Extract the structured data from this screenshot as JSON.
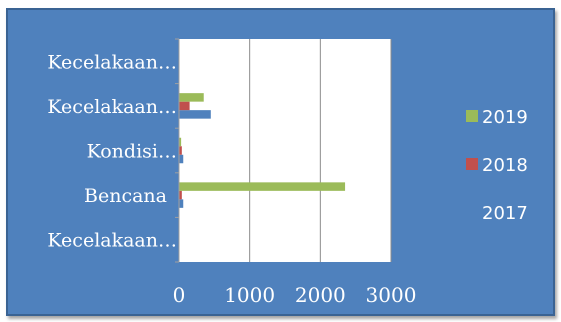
{
  "chart_data": {
    "type": "bar",
    "orientation": "horizontal",
    "categories": [
      "Kecelakaan…",
      "Kecelakaan…",
      "Kondisi…",
      "Bencana",
      "Kecelakaan…"
    ],
    "series": [
      {
        "name": "2017",
        "color": "#4f81bd",
        "values": [
          0,
          450,
          60,
          60,
          0
        ]
      },
      {
        "name": "2018",
        "color": "#c0504d",
        "values": [
          0,
          150,
          40,
          40,
          0
        ]
      },
      {
        "name": "2019",
        "color": "#9bbb59",
        "values": [
          0,
          350,
          30,
          2350,
          0
        ]
      }
    ],
    "xlim": [
      0,
      3000
    ],
    "xticks": [
      "0",
      "1000",
      "2000",
      "3000"
    ],
    "grid": true,
    "legend_position": "right"
  }
}
